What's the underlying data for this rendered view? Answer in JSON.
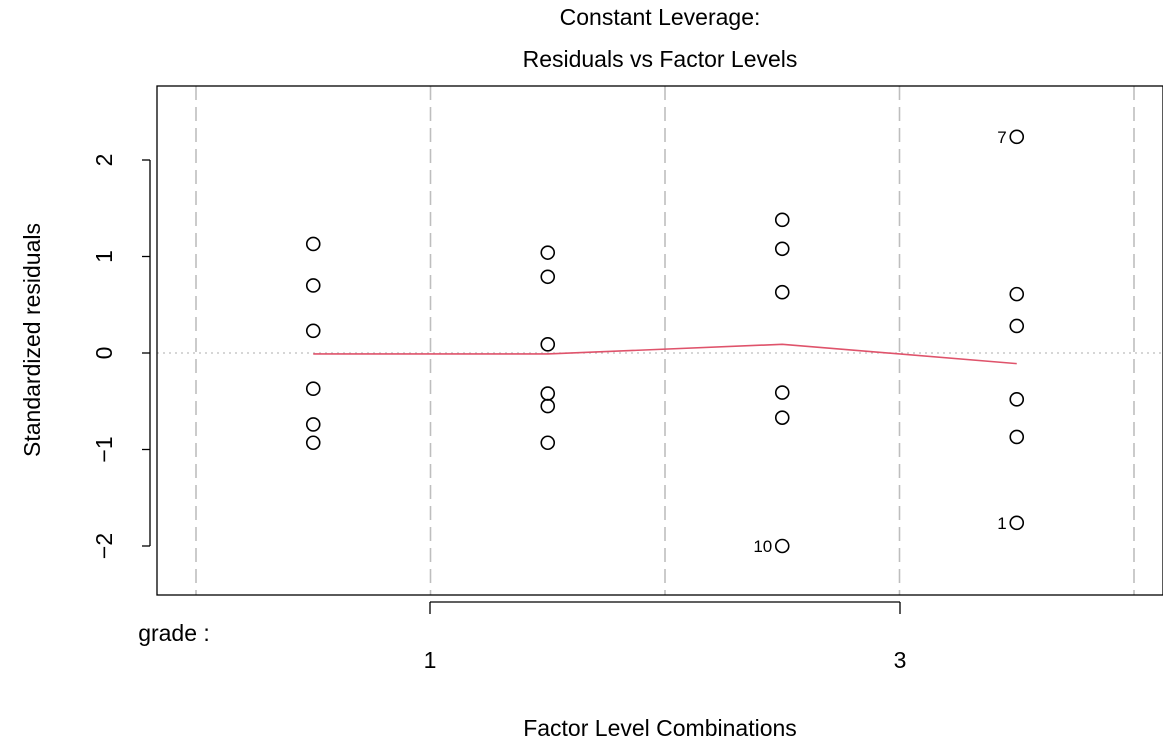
{
  "chart_data": {
    "type": "scatter",
    "title_line1": "Constant Leverage:",
    "title_line2": "Residuals vs Factor Levels",
    "xlabel": "Factor Level Combinations",
    "ylabel": "Standardized residuals",
    "factor_label": "grade :",
    "ylim": [
      -2.5,
      2.6
    ],
    "yticks": [
      -2,
      -1,
      0,
      1,
      2
    ],
    "ytick_labels": [
      "−2",
      "−1",
      "0",
      "1",
      "2"
    ],
    "x_tick_labels": [
      "1",
      "3"
    ],
    "n_levels": 4,
    "points": [
      {
        "level": 1,
        "y": 1.13
      },
      {
        "level": 1,
        "y": 0.7
      },
      {
        "level": 1,
        "y": 0.23
      },
      {
        "level": 1,
        "y": -0.37
      },
      {
        "level": 1,
        "y": -0.74
      },
      {
        "level": 1,
        "y": -0.93
      },
      {
        "level": 2,
        "y": 1.04
      },
      {
        "level": 2,
        "y": 0.79
      },
      {
        "level": 2,
        "y": 0.09
      },
      {
        "level": 2,
        "y": -0.42
      },
      {
        "level": 2,
        "y": -0.55
      },
      {
        "level": 2,
        "y": -0.93
      },
      {
        "level": 3,
        "y": 1.38
      },
      {
        "level": 3,
        "y": 1.08
      },
      {
        "level": 3,
        "y": 0.63
      },
      {
        "level": 3,
        "y": -0.41
      },
      {
        "level": 3,
        "y": -0.67
      },
      {
        "level": 3,
        "y": -2.0,
        "label": "10"
      },
      {
        "level": 4,
        "y": 2.24,
        "label": "7"
      },
      {
        "level": 4,
        "y": 0.61
      },
      {
        "level": 4,
        "y": 0.28
      },
      {
        "level": 4,
        "y": -0.48
      },
      {
        "level": 4,
        "y": -0.87
      },
      {
        "level": 4,
        "y": -1.76,
        "label": "1"
      }
    ],
    "smooth_line": [
      {
        "level": 1,
        "y": -0.01
      },
      {
        "level": 2,
        "y": -0.01
      },
      {
        "level": 3,
        "y": 0.09
      },
      {
        "level": 4,
        "y": -0.11
      }
    ],
    "colors": {
      "points": "#000000",
      "smooth": "#DF536B",
      "reference_line": "#BEBEBE",
      "separators": "#BEBEBE"
    }
  }
}
